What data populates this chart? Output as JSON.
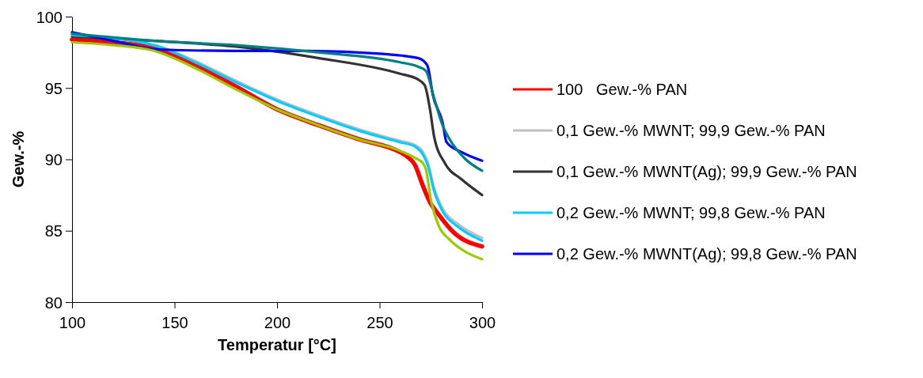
{
  "chart_data": {
    "type": "line",
    "xlabel": "Temperatur [°C]",
    "ylabel": "Gew.-%",
    "xlim": [
      100,
      300
    ],
    "ylim": [
      80,
      100
    ],
    "xticks": [
      100,
      150,
      200,
      250,
      300
    ],
    "yticks": [
      80,
      85,
      90,
      95,
      100
    ],
    "grid": false,
    "legend": "right",
    "marker": "none",
    "line_style": "solid",
    "series": [
      {
        "name": "100   Gew.-% PAN",
        "color": "#ff0000",
        "x": [
          100,
          120,
          140,
          160,
          180,
          200,
          220,
          240,
          260,
          263.4,
          267.3,
          271,
          274.6,
          279,
          286,
          300
        ],
        "values": [
          98.4,
          98.2,
          97.8,
          96.6,
          95.1,
          93.5,
          92.4,
          91.4,
          90.5,
          90.2,
          89.6,
          88.2,
          87.0,
          86.1,
          84.9,
          83.9
        ]
      },
      {
        "name": "0,1 Gew.-% MWNT; 99,9 Gew.-% PAN",
        "color": "#c0c0c0",
        "x": [
          100,
          140,
          160,
          180,
          200,
          220,
          240,
          260,
          267.3,
          271.3,
          273.5,
          276.6,
          281,
          288,
          300
        ],
        "values": [
          98.7,
          98.0,
          96.9,
          95.5,
          94.2,
          93.1,
          92.1,
          91.3,
          91.0,
          90.5,
          89.8,
          88.0,
          86.5,
          85.5,
          84.5
        ]
      },
      {
        "name": "0,1 Gew.-% MWNT(Ag); 99,9 Gew.-% PAN",
        "color": "#333333",
        "x": [
          100,
          140,
          180,
          220,
          260,
          268.7,
          272,
          274.6,
          276.6,
          282,
          290,
          300
        ],
        "values": [
          98.6,
          98.3,
          97.9,
          97.1,
          96.0,
          95.6,
          95.2,
          93.5,
          91.6,
          89.7,
          88.6,
          87.5
        ]
      },
      {
        "name": "0,2 Gew.-% MWNT; 99,8 Gew.-% PAN",
        "color": "#00ccff",
        "x": [
          100,
          140,
          160,
          180,
          200,
          220,
          240,
          260,
          267.3,
          271.3,
          273.5,
          276.6,
          281,
          288,
          300
        ],
        "values": [
          98.7,
          98.0,
          96.8,
          95.4,
          94.1,
          93.0,
          92.0,
          91.2,
          90.9,
          90.3,
          89.6,
          87.8,
          86.3,
          85.3,
          84.3
        ]
      },
      {
        "name": "0,2 Gew.-% MWNT(Ag); 99,8 Gew.-% PAN",
        "color": "#0000ff",
        "x": [
          100,
          120,
          142,
          180,
          215,
          250,
          268.7,
          271.4,
          273.5,
          276,
          280.7,
          282.7,
          290,
          300
        ],
        "values": [
          98.9,
          98.3,
          97.7,
          97.6,
          97.6,
          97.4,
          97.1,
          96.9,
          96.5,
          94.5,
          92.6,
          91.2,
          90.5,
          89.9
        ]
      },
      {
        "color": "#008080",
        "x": [
          100,
          140,
          180,
          220,
          260,
          268.7,
          272.6,
          276.6,
          280.7,
          286,
          292,
          300
        ],
        "values": [
          98.8,
          98.3,
          98.0,
          97.5,
          96.8,
          96.5,
          96.2,
          94.3,
          92.4,
          91.0,
          90.0,
          89.2
        ]
      },
      {
        "color": "#99cc00",
        "x": [
          100,
          120,
          140,
          160,
          180,
          200,
          220,
          240,
          260,
          267.3,
          271.3,
          272.6,
          275,
          279,
          284,
          291,
          300
        ],
        "values": [
          98.2,
          98.0,
          97.6,
          96.4,
          94.9,
          93.5,
          92.4,
          91.4,
          90.6,
          90.1,
          89.7,
          89.3,
          87.2,
          85.3,
          84.4,
          83.6,
          83.0
        ]
      }
    ]
  }
}
